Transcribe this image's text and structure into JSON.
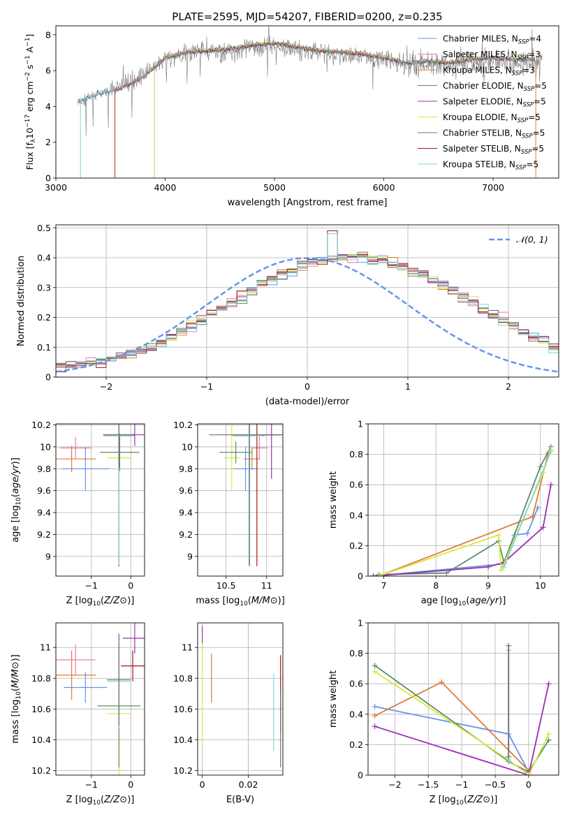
{
  "title": "PLATE=2595, MJD=54207, FIBERID=0200, z=0.235",
  "colors": {
    "chabrier_miles": "#6495ed",
    "salpeter_miles": "#e87ea6",
    "kroupa_miles": "#e07b39",
    "chabrier_elodie": "#5e8c6a",
    "salpeter_elodie": "#9b30b0",
    "kroupa_elodie": "#d7e83a",
    "chabrier_stelib": "#707070",
    "salpeter_stelib": "#a01818",
    "kroupa_stelib": "#7fd6d6"
  },
  "chart_data": [
    {
      "id": "spectrum",
      "type": "line",
      "title": "PLATE=2595, MJD=54207, FIBERID=0200, z=0.235",
      "xlabel": "wavelength [Angstrom, rest frame]",
      "ylabel_parts": [
        "Flux [f",
        "λ",
        "10",
        "−17",
        " erg cm",
        "−2",
        " s",
        "−1",
        " A",
        "−1",
        "]"
      ],
      "xlim": [
        3000,
        7600
      ],
      "ylim": [
        0,
        8.5
      ],
      "xticks": [
        3000,
        4000,
        5000,
        6000,
        7000
      ],
      "yticks": [
        0,
        2,
        4,
        6,
        8
      ],
      "legend_position": "top-right",
      "legend": [
        {
          "name": "Chabrier MILES, N",
          "sub": "SSP",
          "tail": "=4",
          "color": "#6495ed"
        },
        {
          "name": "Salpeter MILES, N",
          "sub": "SSP",
          "tail": "=3",
          "color": "#e87ea6"
        },
        {
          "name": "Kroupa MILES, N",
          "sub": "SSP",
          "tail": "=3",
          "color": "#e07b39"
        },
        {
          "name": "Chabrier ELODIE, N",
          "sub": "SSP",
          "tail": "=5",
          "color": "#5e8c6a"
        },
        {
          "name": "Salpeter ELODIE, N",
          "sub": "SSP",
          "tail": "=5",
          "color": "#9b30b0"
        },
        {
          "name": "Kroupa ELODIE, N",
          "sub": "SSP",
          "tail": "=5",
          "color": "#d7e83a"
        },
        {
          "name": "Chabrier STELIB, N",
          "sub": "SSP",
          "tail": "=5",
          "color": "#707070"
        },
        {
          "name": "Salpeter STELIB, N",
          "sub": "SSP",
          "tail": "=5",
          "color": "#a01818"
        },
        {
          "name": "Kroupa STELIB, N",
          "sub": "SSP",
          "tail": "=5",
          "color": "#7fd6d6"
        }
      ],
      "data_x": [
        3200,
        3400,
        3600,
        3800,
        4000,
        4200,
        4400,
        4600,
        4800,
        5000,
        5200,
        5400,
        5600,
        5800,
        6000,
        6200,
        6400,
        6600,
        6800,
        7000,
        7200,
        7400,
        7600
      ],
      "data_y": [
        4.2,
        4.7,
        5.1,
        5.8,
        6.6,
        6.9,
        7.0,
        7.1,
        7.3,
        7.4,
        7.2,
        7.0,
        6.9,
        6.8,
        6.6,
        6.3,
        6.4,
        6.3,
        6.5,
        6.6,
        6.4,
        6.5,
        6.4
      ],
      "model_x": [
        3200,
        3400,
        3600,
        3800,
        4000,
        4200,
        4400,
        4600,
        4800,
        5000,
        5200,
        5400,
        5600,
        5800,
        6000,
        6200,
        6400,
        6600,
        6800,
        7000,
        7200,
        7400
      ],
      "model_y": [
        4.3,
        4.7,
        5.0,
        5.6,
        6.7,
        7.0,
        7.1,
        7.2,
        7.4,
        7.5,
        7.3,
        7.1,
        7.0,
        6.9,
        6.7,
        6.4,
        6.5,
        6.4,
        6.6,
        6.7,
        6.6,
        6.6
      ]
    },
    {
      "id": "residuals",
      "type": "line",
      "xlabel": "(data-model)/error",
      "ylabel": "Normed distribution",
      "xlim": [
        -2.5,
        2.5
      ],
      "ylim": [
        0,
        0.51
      ],
      "xticks": [
        -2,
        -1,
        0,
        1,
        2
      ],
      "yticks": [
        0.0,
        0.1,
        0.2,
        0.3,
        0.4,
        0.5
      ],
      "legend_position": "top-right",
      "legend_label": "𝒩(0, 1)",
      "bin_width": 0.1,
      "bin_start": -2.5,
      "hist_base": [
        0.035,
        0.04,
        0.045,
        0.05,
        0.055,
        0.06,
        0.07,
        0.08,
        0.09,
        0.1,
        0.12,
        0.135,
        0.15,
        0.17,
        0.19,
        0.21,
        0.23,
        0.25,
        0.27,
        0.29,
        0.31,
        0.33,
        0.345,
        0.36,
        0.37,
        0.38,
        0.39,
        0.395,
        0.4,
        0.4,
        0.4,
        0.395,
        0.39,
        0.38,
        0.37,
        0.36,
        0.345,
        0.33,
        0.31,
        0.29,
        0.27,
        0.25,
        0.23,
        0.21,
        0.19,
        0.17,
        0.15,
        0.135,
        0.12,
        0.1
      ],
      "dashed_color": "#6495ed"
    },
    {
      "id": "age-vs-z",
      "type": "scatter",
      "xlabel": "Z [log10(Z/Z⊙)]",
      "ylabel": "age  [log10(age/yr)]",
      "xlim": [
        -1.9,
        0.35
      ],
      "ylim": [
        8.82,
        10.21
      ],
      "xticks": [
        -1,
        0
      ],
      "yticks": [
        9.0,
        9.2,
        9.4,
        9.6,
        9.8,
        10.0,
        10.2
      ],
      "points": [
        {
          "x": -1.5,
          "y": 9.89,
          "xerr": 0.62,
          "yerr": 0.12,
          "color": "#e07b39"
        },
        {
          "x": -1.4,
          "y": 9.99,
          "xerr": 0.4,
          "yerr": 0.1,
          "color": "#e87ea6"
        },
        {
          "x": -1.15,
          "y": 9.8,
          "xerr": 0.6,
          "yerr": 0.2,
          "color": "#6495ed"
        },
        {
          "x": -0.3,
          "y": 9.9,
          "xerr": 0.3,
          "yerr": 0.3,
          "color": "#d7e83a"
        },
        {
          "x": -0.28,
          "y": 9.95,
          "xerr": 0.5,
          "yerr": 0.17,
          "color": "#5e8c6a"
        },
        {
          "x": 0.1,
          "y": 10.11,
          "xerr": 0.3,
          "yerr": 0.1,
          "color": "#9b30b0"
        },
        {
          "x": -0.3,
          "y": 10.11,
          "xerr": 0.4,
          "yerr": 1.2,
          "color": "#a01818"
        },
        {
          "x": -0.3,
          "y": 10.1,
          "xerr": 0.4,
          "yerr": 1.18,
          "color": "#7fd6d6"
        },
        {
          "x": -0.3,
          "y": 10.11,
          "xerr": 0.35,
          "yerr": 0.3,
          "color": "#707070"
        }
      ]
    },
    {
      "id": "age-vs-mass",
      "type": "scatter",
      "xlabel": "mass [log10(M/M⊙)]",
      "xlim": [
        10.15,
        11.2
      ],
      "ylim": [
        8.82,
        10.21
      ],
      "xticks": [
        10.5,
        11.0
      ],
      "yticks": [
        9.0,
        9.2,
        9.4,
        9.6,
        9.8,
        10.0,
        10.2
      ],
      "points": [
        {
          "x": 10.82,
          "y": 9.89,
          "xerr": 0.1,
          "yerr": 0.1,
          "color": "#e07b39"
        },
        {
          "x": 10.91,
          "y": 9.99,
          "xerr": 0.1,
          "yerr": 0.1,
          "color": "#e87ea6"
        },
        {
          "x": 10.74,
          "y": 9.8,
          "xerr": 0.15,
          "yerr": 0.2,
          "color": "#6495ed"
        },
        {
          "x": 10.57,
          "y": 9.9,
          "xerr": 0.1,
          "yerr": 0.3,
          "color": "#d7e83a"
        },
        {
          "x": 10.62,
          "y": 9.95,
          "xerr": 0.2,
          "yerr": 0.1,
          "color": "#5e8c6a"
        },
        {
          "x": 11.06,
          "y": 10.11,
          "xerr": 0.12,
          "yerr": 0.4,
          "color": "#9b30b0"
        },
        {
          "x": 10.88,
          "y": 10.11,
          "xerr": 0.3,
          "yerr": 1.2,
          "color": "#a01818"
        },
        {
          "x": 10.78,
          "y": 10.1,
          "xerr": 0.2,
          "yerr": 1.18,
          "color": "#7fd6d6"
        },
        {
          "x": 10.79,
          "y": 10.11,
          "xerr": 0.5,
          "yerr": 1.2,
          "color": "#707070"
        }
      ]
    },
    {
      "id": "weight-vs-age",
      "type": "line",
      "xlabel": "age  [log10(age/yr)]",
      "ylabel": "mass weight",
      "xlim": [
        6.7,
        10.35
      ],
      "ylim": [
        0,
        1
      ],
      "xticks": [
        7,
        8,
        9,
        10
      ],
      "yticks": [
        0.0,
        0.2,
        0.4,
        0.6,
        0.8,
        1.0
      ],
      "series": [
        {
          "color": "#6495ed",
          "x": [
            6.8,
            9.3,
            9.5,
            9.75,
            9.95
          ],
          "y": [
            0.0,
            0.08,
            0.27,
            0.28,
            0.45
          ]
        },
        {
          "color": "#e07b39",
          "x": [
            6.9,
            9.85,
            10.15
          ],
          "y": [
            0.0,
            0.39,
            0.81
          ]
        },
        {
          "color": "#5e8c6a",
          "x": [
            6.9,
            8.2,
            9.2,
            9.3,
            10.0,
            10.2
          ],
          "y": [
            0.01,
            0.02,
            0.23,
            0.09,
            0.72,
            0.85
          ]
        },
        {
          "color": "#9b30b0",
          "x": [
            6.8,
            9.0,
            9.3,
            10.05,
            10.2
          ],
          "y": [
            0.0,
            0.06,
            0.09,
            0.32,
            0.6
          ]
        },
        {
          "color": "#d7e83a",
          "x": [
            6.9,
            9.2,
            9.25,
            10.05,
            10.2
          ],
          "y": [
            0.0,
            0.27,
            0.04,
            0.68,
            0.83
          ]
        },
        {
          "color": "#7fd6d6",
          "x": [
            9.3,
            10.2
          ],
          "y": [
            0.06,
            0.82
          ]
        }
      ]
    },
    {
      "id": "mass-vs-z",
      "type": "scatter",
      "xlabel": "Z [log10(Z/Z⊙)]",
      "ylabel": "mass [log10(M/M⊙)]",
      "xlim": [
        -1.9,
        0.35
      ],
      "ylim": [
        10.17,
        11.16
      ],
      "xticks": [
        -1,
        0
      ],
      "yticks": [
        10.2,
        10.4,
        10.6,
        10.8,
        11.0
      ],
      "points": [
        {
          "x": -1.5,
          "y": 10.82,
          "xerr": 0.62,
          "yerr": 0.16,
          "color": "#e07b39"
        },
        {
          "x": -1.4,
          "y": 10.92,
          "xerr": 0.5,
          "yerr": 0.1,
          "color": "#e87ea6"
        },
        {
          "x": -1.15,
          "y": 10.74,
          "xerr": 0.55,
          "yerr": 0.1,
          "color": "#6495ed"
        },
        {
          "x": -0.3,
          "y": 10.57,
          "xerr": 0.3,
          "yerr": 0.45,
          "color": "#d7e83a"
        },
        {
          "x": -0.3,
          "y": 10.62,
          "xerr": 0.55,
          "yerr": 0.4,
          "color": "#5e8c6a"
        },
        {
          "x": 0.1,
          "y": 11.06,
          "xerr": 0.3,
          "yerr": 0.1,
          "color": "#9b30b0"
        },
        {
          "x": 0.05,
          "y": 10.88,
          "xerr": 0.3,
          "yerr": 0.1,
          "color": "#a01818"
        },
        {
          "x": -0.3,
          "y": 10.78,
          "xerr": 0.3,
          "yerr": 0.3,
          "color": "#7fd6d6"
        },
        {
          "x": -0.3,
          "y": 10.79,
          "xerr": 0.3,
          "yerr": 0.3,
          "color": "#707070"
        }
      ]
    },
    {
      "id": "mass-vs-ebv",
      "type": "scatter",
      "xlabel": "E(B-V)",
      "xlim": [
        -0.002,
        0.035
      ],
      "ylim": [
        10.17,
        11.16
      ],
      "xticks": [
        0.0,
        0.02
      ],
      "yticks": [
        10.2,
        10.4,
        10.6,
        10.8,
        11.0
      ],
      "points": [
        {
          "x": 0.0,
          "y": 11.06,
          "xerr": 0.0,
          "yerr": 0.08,
          "color": "#9b30b0"
        },
        {
          "x": 0.0,
          "y": 10.7,
          "xerr": 0.0,
          "yerr": 0.33,
          "color": "#d7e83a"
        },
        {
          "x": 0.004,
          "y": 10.8,
          "xerr": 0.0,
          "yerr": 0.16,
          "color": "#e07b39"
        },
        {
          "x": 0.031,
          "y": 10.58,
          "xerr": 0.0,
          "yerr": 0.25,
          "color": "#7fd6d6"
        },
        {
          "x": 0.034,
          "y": 10.7,
          "xerr": 0.0,
          "yerr": 0.25,
          "color": "#a01818"
        },
        {
          "x": 0.034,
          "y": 10.47,
          "xerr": 0.0,
          "yerr": 0.25,
          "color": "#707070"
        }
      ]
    },
    {
      "id": "weight-vs-z",
      "type": "line",
      "xlabel": "Z [log10(Z/Z⊙)]",
      "ylabel": "mass weight",
      "xlim": [
        -2.4,
        0.45
      ],
      "ylim": [
        0,
        1
      ],
      "xticks": [
        -2.0,
        -1.5,
        -1.0,
        -0.5,
        0.0
      ],
      "yticks": [
        0.0,
        0.2,
        0.4,
        0.6,
        0.8,
        1.0
      ],
      "series": [
        {
          "color": "#6495ed",
          "x": [
            -2.3,
            -0.3,
            0.0
          ],
          "y": [
            0.45,
            0.27,
            0.02
          ]
        },
        {
          "color": "#e07b39",
          "x": [
            -2.3,
            -1.3,
            0.0
          ],
          "y": [
            0.39,
            0.61,
            0.03
          ]
        },
        {
          "color": "#5e8c6a",
          "x": [
            -2.3,
            -0.3,
            0.0,
            0.3
          ],
          "y": [
            0.72,
            0.09,
            0.02,
            0.23
          ]
        },
        {
          "color": "#9b30b0",
          "x": [
            -2.3,
            0.0,
            0.3
          ],
          "y": [
            0.32,
            0.0,
            0.6
          ]
        },
        {
          "color": "#d7e83a",
          "x": [
            -2.3,
            -0.3,
            0.0,
            0.3
          ],
          "y": [
            0.68,
            0.1,
            0.0,
            0.27
          ]
        },
        {
          "color": "#7fd6d6",
          "x": [
            -0.3,
            -0.3
          ],
          "y": [
            0.1,
            0.82
          ]
        },
        {
          "color": "#707070",
          "x": [
            -0.3,
            -0.3
          ],
          "y": [
            0.12,
            0.85
          ]
        }
      ]
    }
  ]
}
